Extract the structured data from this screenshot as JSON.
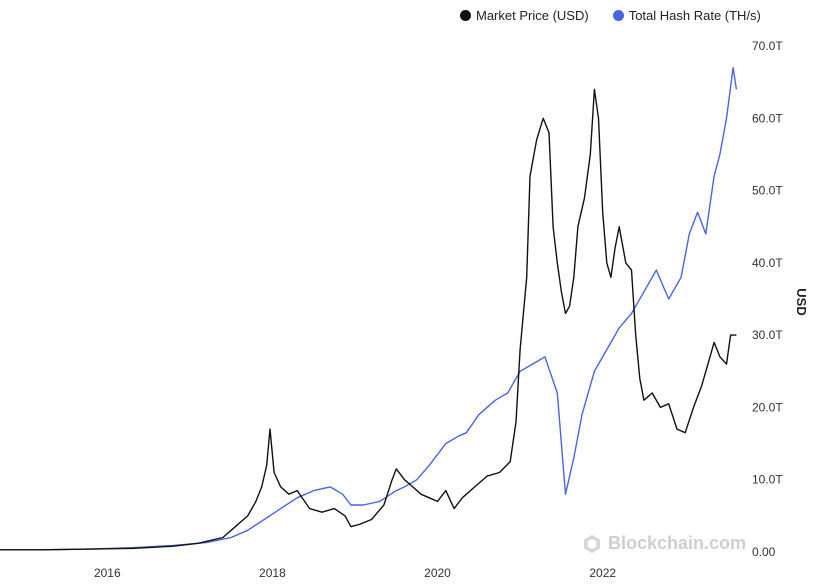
{
  "legend": {
    "price_label": "Market Price (USD)",
    "hash_label": "Total Hash Rate (TH/s)"
  },
  "colors": {
    "price": "#111111",
    "hash": "#4c63e0"
  },
  "watermark": {
    "text": "Blockchain.com",
    "icon": "blockchain-logo-icon"
  },
  "chart_data": {
    "type": "line",
    "x_ticks": [
      "2016",
      "2018",
      "2020",
      "2022"
    ],
    "y_right_ticks": [
      "0.00",
      "10.0T",
      "20.0T",
      "30.0T",
      "40.0T",
      "50.0T",
      "60.0T",
      "70.0T"
    ],
    "y_right_label": "USD",
    "ylim": [
      0,
      70
    ],
    "xlim": [
      2014.7,
      2023.7
    ],
    "series": [
      {
        "name": "Market Price (USD)",
        "x": [
          2014.7,
          2015.2,
          2015.8,
          2016.3,
          2016.8,
          2017.1,
          2017.4,
          2017.55,
          2017.7,
          2017.8,
          2017.87,
          2017.93,
          2017.97,
          2018.02,
          2018.1,
          2018.2,
          2018.3,
          2018.45,
          2018.6,
          2018.75,
          2018.88,
          2018.95,
          2019.05,
          2019.2,
          2019.35,
          2019.45,
          2019.5,
          2019.6,
          2019.7,
          2019.8,
          2019.9,
          2020.0,
          2020.1,
          2020.2,
          2020.3,
          2020.45,
          2020.6,
          2020.75,
          2020.88,
          2020.95,
          2021.0,
          2021.08,
          2021.12,
          2021.2,
          2021.28,
          2021.35,
          2021.4,
          2021.45,
          2021.5,
          2021.55,
          2021.6,
          2021.65,
          2021.7,
          2021.78,
          2021.85,
          2021.9,
          2021.95,
          2022.0,
          2022.05,
          2022.1,
          2022.15,
          2022.2,
          2022.28,
          2022.35,
          2022.4,
          2022.45,
          2022.5,
          2022.6,
          2022.7,
          2022.8,
          2022.9,
          2023.0,
          2023.1,
          2023.2,
          2023.3,
          2023.35,
          2023.42,
          2023.5,
          2023.55,
          2023.62
        ],
        "values": [
          0.3,
          0.3,
          0.4,
          0.5,
          0.8,
          1.2,
          2.0,
          3.5,
          5.0,
          7.0,
          9.0,
          12.0,
          17.0,
          11.0,
          9.0,
          8.0,
          8.5,
          6.0,
          5.5,
          6.0,
          5.0,
          3.5,
          3.8,
          4.5,
          6.5,
          10.0,
          11.5,
          10.0,
          9.0,
          8.0,
          7.5,
          7.0,
          8.5,
          6.0,
          7.5,
          9.0,
          10.5,
          11.0,
          12.5,
          18.0,
          28.0,
          38.0,
          52.0,
          57.0,
          60.0,
          58.0,
          45.0,
          40.0,
          36.0,
          33.0,
          34.0,
          38.0,
          45.0,
          49.0,
          55.0,
          64.0,
          60.0,
          47.0,
          40.0,
          38.0,
          42.0,
          45.0,
          40.0,
          39.0,
          30.0,
          24.0,
          21.0,
          22.0,
          20.0,
          20.5,
          17.0,
          16.5,
          20.0,
          23.0,
          27.0,
          29.0,
          27.0,
          26.0,
          30.0,
          30.0
        ]
      },
      {
        "name": "Total Hash Rate (TH/s)",
        "x": [
          2014.7,
          2015.2,
          2015.8,
          2016.3,
          2016.8,
          2017.2,
          2017.5,
          2017.7,
          2017.9,
          2018.1,
          2018.3,
          2018.5,
          2018.7,
          2018.85,
          2018.95,
          2019.1,
          2019.3,
          2019.5,
          2019.6,
          2019.75,
          2019.9,
          2020.1,
          2020.25,
          2020.35,
          2020.5,
          2020.7,
          2020.85,
          2021.0,
          2021.15,
          2021.3,
          2021.45,
          2021.55,
          2021.65,
          2021.75,
          2021.9,
          2022.05,
          2022.2,
          2022.35,
          2022.5,
          2022.65,
          2022.8,
          2022.95,
          2023.05,
          2023.15,
          2023.25,
          2023.35,
          2023.42,
          2023.5,
          2023.58,
          2023.62
        ],
        "values": [
          0.3,
          0.3,
          0.4,
          0.6,
          0.9,
          1.3,
          2.0,
          3.0,
          4.5,
          6.0,
          7.5,
          8.5,
          9.0,
          8.0,
          6.5,
          6.5,
          7.0,
          8.5,
          9.0,
          10.0,
          12.0,
          15.0,
          16.0,
          16.5,
          19.0,
          21.0,
          22.0,
          25.0,
          26.0,
          27.0,
          22.0,
          8.0,
          13.0,
          19.0,
          25.0,
          28.0,
          31.0,
          33.0,
          36.0,
          39.0,
          35.0,
          38.0,
          44.0,
          47.0,
          44.0,
          52.0,
          55.0,
          60.0,
          67.0,
          64.0
        ]
      }
    ],
    "grid": false,
    "legend_position": "top-right"
  }
}
